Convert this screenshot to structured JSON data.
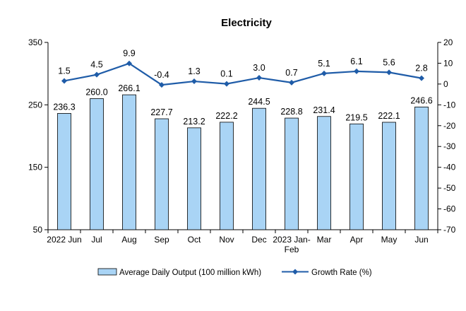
{
  "chart_data": {
    "type": "bar",
    "title": "Electricity",
    "categories": [
      "2022 Jun",
      "Jul",
      "Aug",
      "Sep",
      "Oct",
      "Nov",
      "Dec",
      "2023 Jan-\nFeb",
      "Mar",
      "Apr",
      "May",
      "Jun"
    ],
    "series": [
      {
        "name": "Average Daily Output (100 million kWh)",
        "type": "bar",
        "axis": "left",
        "color": "#a9d4f5",
        "values": [
          236.3,
          260.0,
          266.1,
          227.7,
          213.2,
          222.2,
          244.5,
          228.8,
          231.4,
          219.5,
          222.1,
          246.6
        ],
        "labels": [
          "236.3",
          "260.0",
          "266.1",
          "227.7",
          "213.2",
          "222.2",
          "244.5",
          "228.8",
          "231.4",
          "219.5",
          "222.1",
          "246.6"
        ]
      },
      {
        "name": "Growth Rate (%)",
        "type": "line",
        "axis": "right",
        "color": "#1f5ca8",
        "values": [
          1.5,
          4.5,
          9.9,
          -0.4,
          1.3,
          0.1,
          3.0,
          0.7,
          5.1,
          6.1,
          5.6,
          2.8
        ],
        "labels": [
          "1.5",
          "4.5",
          "9.9",
          "-0.4",
          "1.3",
          "0.1",
          "3.0",
          "0.7",
          "5.1",
          "6.1",
          "5.6",
          "2.8"
        ]
      }
    ],
    "y_left": {
      "min": 50,
      "max": 350,
      "ticks": [
        50,
        150,
        250,
        350
      ]
    },
    "y_right": {
      "min": -70,
      "max": 20,
      "ticks": [
        -70,
        -60,
        -50,
        -40,
        -30,
        -20,
        -10,
        0,
        10,
        20
      ]
    },
    "grid": false,
    "legend": "bottom"
  }
}
